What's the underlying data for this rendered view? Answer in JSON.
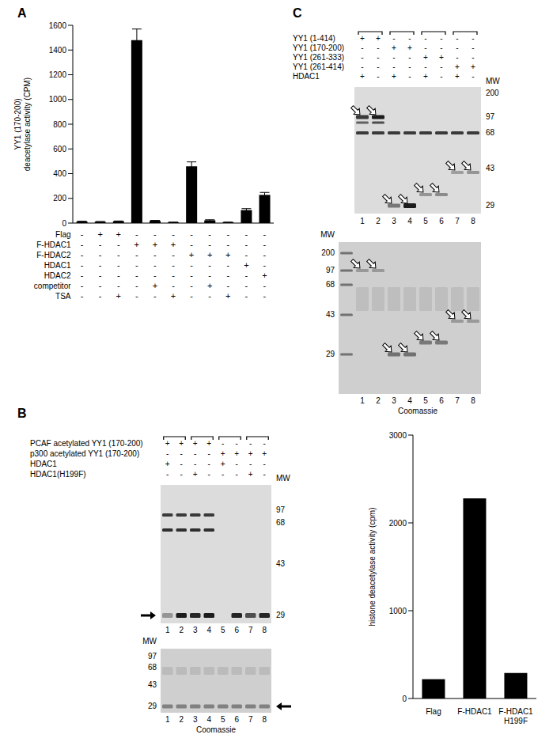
{
  "panel_labels": [
    "A",
    "B",
    "C"
  ],
  "chart_data": [
    {
      "type": "bar",
      "categories": [
        null,
        null,
        null,
        null,
        null,
        null,
        null,
        null,
        null,
        null,
        null
      ],
      "values": [
        12,
        10,
        14,
        1480,
        18,
        6,
        460,
        22,
        6,
        105,
        228
      ],
      "errors": [
        3,
        3,
        3,
        90,
        4,
        2,
        35,
        5,
        2,
        12,
        20
      ],
      "color": "#000000",
      "ylim": [
        0,
        1600
      ],
      "yticks": [
        0,
        200,
        400,
        600,
        800,
        1000,
        1200,
        1400,
        1600
      ],
      "ylabel": "YY1 (170-200)\ndeacetylase activity (CPM)",
      "grid": false,
      "conditions": [
        {
          "name": "Flag",
          "marks": [
            "-",
            "+",
            "+",
            "-",
            "-",
            "-",
            "-",
            "-",
            "-",
            "-",
            "-"
          ]
        },
        {
          "name": "F-HDAC1",
          "marks": [
            "-",
            "-",
            "-",
            "+",
            "+",
            "+",
            "-",
            "-",
            "-",
            "-",
            "-"
          ]
        },
        {
          "name": "F-HDAC2",
          "marks": [
            "-",
            "-",
            "-",
            "-",
            "-",
            "-",
            "+",
            "+",
            "+",
            "-",
            "-"
          ]
        },
        {
          "name": "HDAC1",
          "marks": [
            "-",
            "-",
            "-",
            "-",
            "-",
            "-",
            "-",
            "-",
            "-",
            "+",
            "-"
          ]
        },
        {
          "name": "HDAC2",
          "marks": [
            "-",
            "-",
            "-",
            "-",
            "-",
            "-",
            "-",
            "-",
            "-",
            "-",
            "+"
          ]
        },
        {
          "name": "competitor",
          "marks": [
            "-",
            "-",
            "-",
            "-",
            "+",
            "-",
            "-",
            "+",
            "-",
            "-",
            "-"
          ]
        },
        {
          "name": "TSA",
          "marks": [
            "-",
            "-",
            "+",
            "-",
            "-",
            "+",
            "-",
            "-",
            "+",
            "-",
            "-"
          ]
        }
      ]
    },
    {
      "type": "bar",
      "categories": [
        "Flag",
        "F-HDAC1",
        "F-HDAC1 H199F"
      ],
      "values": [
        220,
        2280,
        290
      ],
      "color": "#000000",
      "ylim": [
        0,
        3000
      ],
      "yticks": [
        0,
        1000,
        2000,
        3000
      ],
      "ylabel": "histone deacetylase activity (cpm)",
      "grid": false
    }
  ],
  "gels": {
    "B": {
      "conditions": [
        {
          "name": "PCAF acetylated YY1 (170-200)",
          "marks": [
            "+",
            "+",
            "+",
            "+",
            "-",
            "-",
            "-",
            "-"
          ]
        },
        {
          "name": "p300 acetylated YY1 (170-200)",
          "marks": [
            "-",
            "-",
            "-",
            "-",
            "+",
            "+",
            "+",
            "+"
          ]
        },
        {
          "name": "HDAC1",
          "marks": [
            "+",
            "-",
            "-",
            "-",
            "+",
            "-",
            "-",
            "-"
          ]
        },
        {
          "name": "HDAC1(H199F)",
          "marks": [
            "-",
            "-",
            "+",
            "-",
            "-",
            "-",
            "+",
            "-"
          ]
        }
      ],
      "blots": [
        {
          "mw_title": "MW",
          "mw": [
            97,
            68,
            43,
            29
          ],
          "lanes": [
            1,
            2,
            3,
            4,
            5,
            6,
            7,
            8
          ]
        },
        {
          "mw_title": "MW",
          "mw": [
            97,
            68,
            43,
            29
          ],
          "lanes": [
            1,
            2,
            3,
            4,
            5,
            6,
            7,
            8
          ],
          "caption": "Coomassie"
        }
      ]
    },
    "C": {
      "conditions": [
        {
          "name": "YY1 (1-414)",
          "marks": [
            "+",
            "+",
            "-",
            "-",
            "-",
            "-",
            "-",
            "-"
          ]
        },
        {
          "name": "YY1 (170-200)",
          "marks": [
            "-",
            "-",
            "+",
            "+",
            "-",
            "-",
            "-",
            "-"
          ]
        },
        {
          "name": "YY1 (261-333)",
          "marks": [
            "-",
            "-",
            "-",
            "-",
            "+",
            "+",
            "-",
            "-"
          ]
        },
        {
          "name": "YY1 (261-414)",
          "marks": [
            "-",
            "-",
            "-",
            "-",
            "-",
            "-",
            "+",
            "+"
          ]
        },
        {
          "name": "HDAC1",
          "marks": [
            "+",
            "-",
            "+",
            "-",
            "+",
            "-",
            "+",
            "-"
          ]
        }
      ],
      "blots": [
        {
          "mw_title": "MW",
          "mw": [
            200,
            97,
            68,
            43,
            29
          ],
          "lanes": [
            1,
            2,
            3,
            4,
            5,
            6,
            7,
            8
          ]
        },
        {
          "mw_title": "MW",
          "mw": [
            200,
            97,
            68,
            43,
            29
          ],
          "lanes": [
            1,
            2,
            3,
            4,
            5,
            6,
            7,
            8
          ],
          "caption": "Coomassie"
        }
      ]
    }
  }
}
